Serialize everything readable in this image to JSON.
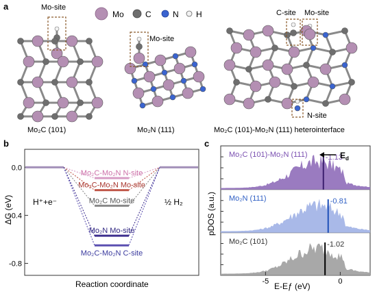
{
  "panel_a": {
    "letter": "a",
    "legend": [
      {
        "label": "Mo",
        "color": "#b48fb3"
      },
      {
        "label": "C",
        "color": "#6e6e6e"
      },
      {
        "label": "N",
        "color": "#3a64d0"
      },
      {
        "label": "H",
        "color": "#f2f2f2"
      }
    ],
    "site_labels": {
      "mo2c": "Mo-site",
      "mo2n": "Mo-site",
      "hetero_c": "C-site",
      "hetero_mo": "Mo-site",
      "hetero_n": "N-site"
    },
    "captions": {
      "mo2c": "Mo₂C (101)",
      "mo2n": "Mo₂N (111)",
      "hetero": "Mo₂C (101)-Mo₂N (111) heterointerface"
    },
    "colors": {
      "mo": "#b48fb3",
      "c": "#6e6e6e",
      "n": "#3a64d0",
      "h": "#f2f2f2",
      "site_box": "#8b5a2b"
    }
  },
  "panel_b_text": {
    "letter": "b",
    "left_state": "H⁺+e⁻",
    "right_state": "½ H₂",
    "xlabel": "Reaction coordinate",
    "ylabel": "ΔG (eV)"
  },
  "panel_c_text": {
    "letter": "c",
    "xlabel": "E-Eƒ (eV)",
    "ylabel": "pDOS (a.u.)",
    "ed_label": "E",
    "ed_sub": "d",
    "xticks": [
      "-5",
      "0"
    ]
  },
  "chart_data": [
    {
      "type": "line",
      "panel": "b",
      "ylabel": "ΔG (eV)",
      "xlabel": "Reaction coordinate",
      "ylim": [
        -0.9,
        0.15
      ],
      "yticks": [
        "0.0",
        "-0.4",
        "-0.8"
      ],
      "ytick_values": [
        0.0,
        -0.4,
        -0.8
      ],
      "initial_state": 0.0,
      "final_state": 0.0,
      "series": [
        {
          "name": "Mo₂C-Mo₂N N-site",
          "value": -0.09,
          "color": "#d79bc4",
          "text_color": "#cc6fa8"
        },
        {
          "name": "Mo₂C-Mo₂N Mo-site",
          "value": -0.19,
          "color": "#c0584a",
          "text_color": "#a8352c"
        },
        {
          "name": "Mo₂C Mo-site",
          "value": -0.32,
          "color": "#888888",
          "text_color": "#555555"
        },
        {
          "name": "Mo₂N Mo-site",
          "value": -0.57,
          "color": "#3d2e8e",
          "text_color": "#2e2480"
        },
        {
          "name": "Mo₂C-Mo₂N C-site",
          "value": -0.65,
          "color": "#5a4fb0",
          "text_color": "#3a3a9e"
        }
      ]
    },
    {
      "type": "area",
      "panel": "c",
      "xlabel": "E-Eƒ (eV)",
      "ylabel": "pDOS (a.u.)",
      "xlim": [
        -8,
        2
      ],
      "xticks": [
        -5,
        0
      ],
      "series": [
        {
          "name": "Mo₂C (101)-Mo₂N (111)",
          "d_band_center": -1.13,
          "fill": "#9a7bc0",
          "text_color": "#7a4fb0",
          "center_label": "-1.13"
        },
        {
          "name": "Mo₂N (111)",
          "d_band_center": -0.81,
          "fill": "#a9b9e8",
          "text_color": "#2f5fc4",
          "center_label": "-0.81"
        },
        {
          "name": "Mo₂C (101)",
          "d_band_center": -1.02,
          "fill": "#a8a8a8",
          "text_color": "#333333",
          "center_label": "-1.02"
        }
      ]
    }
  ]
}
